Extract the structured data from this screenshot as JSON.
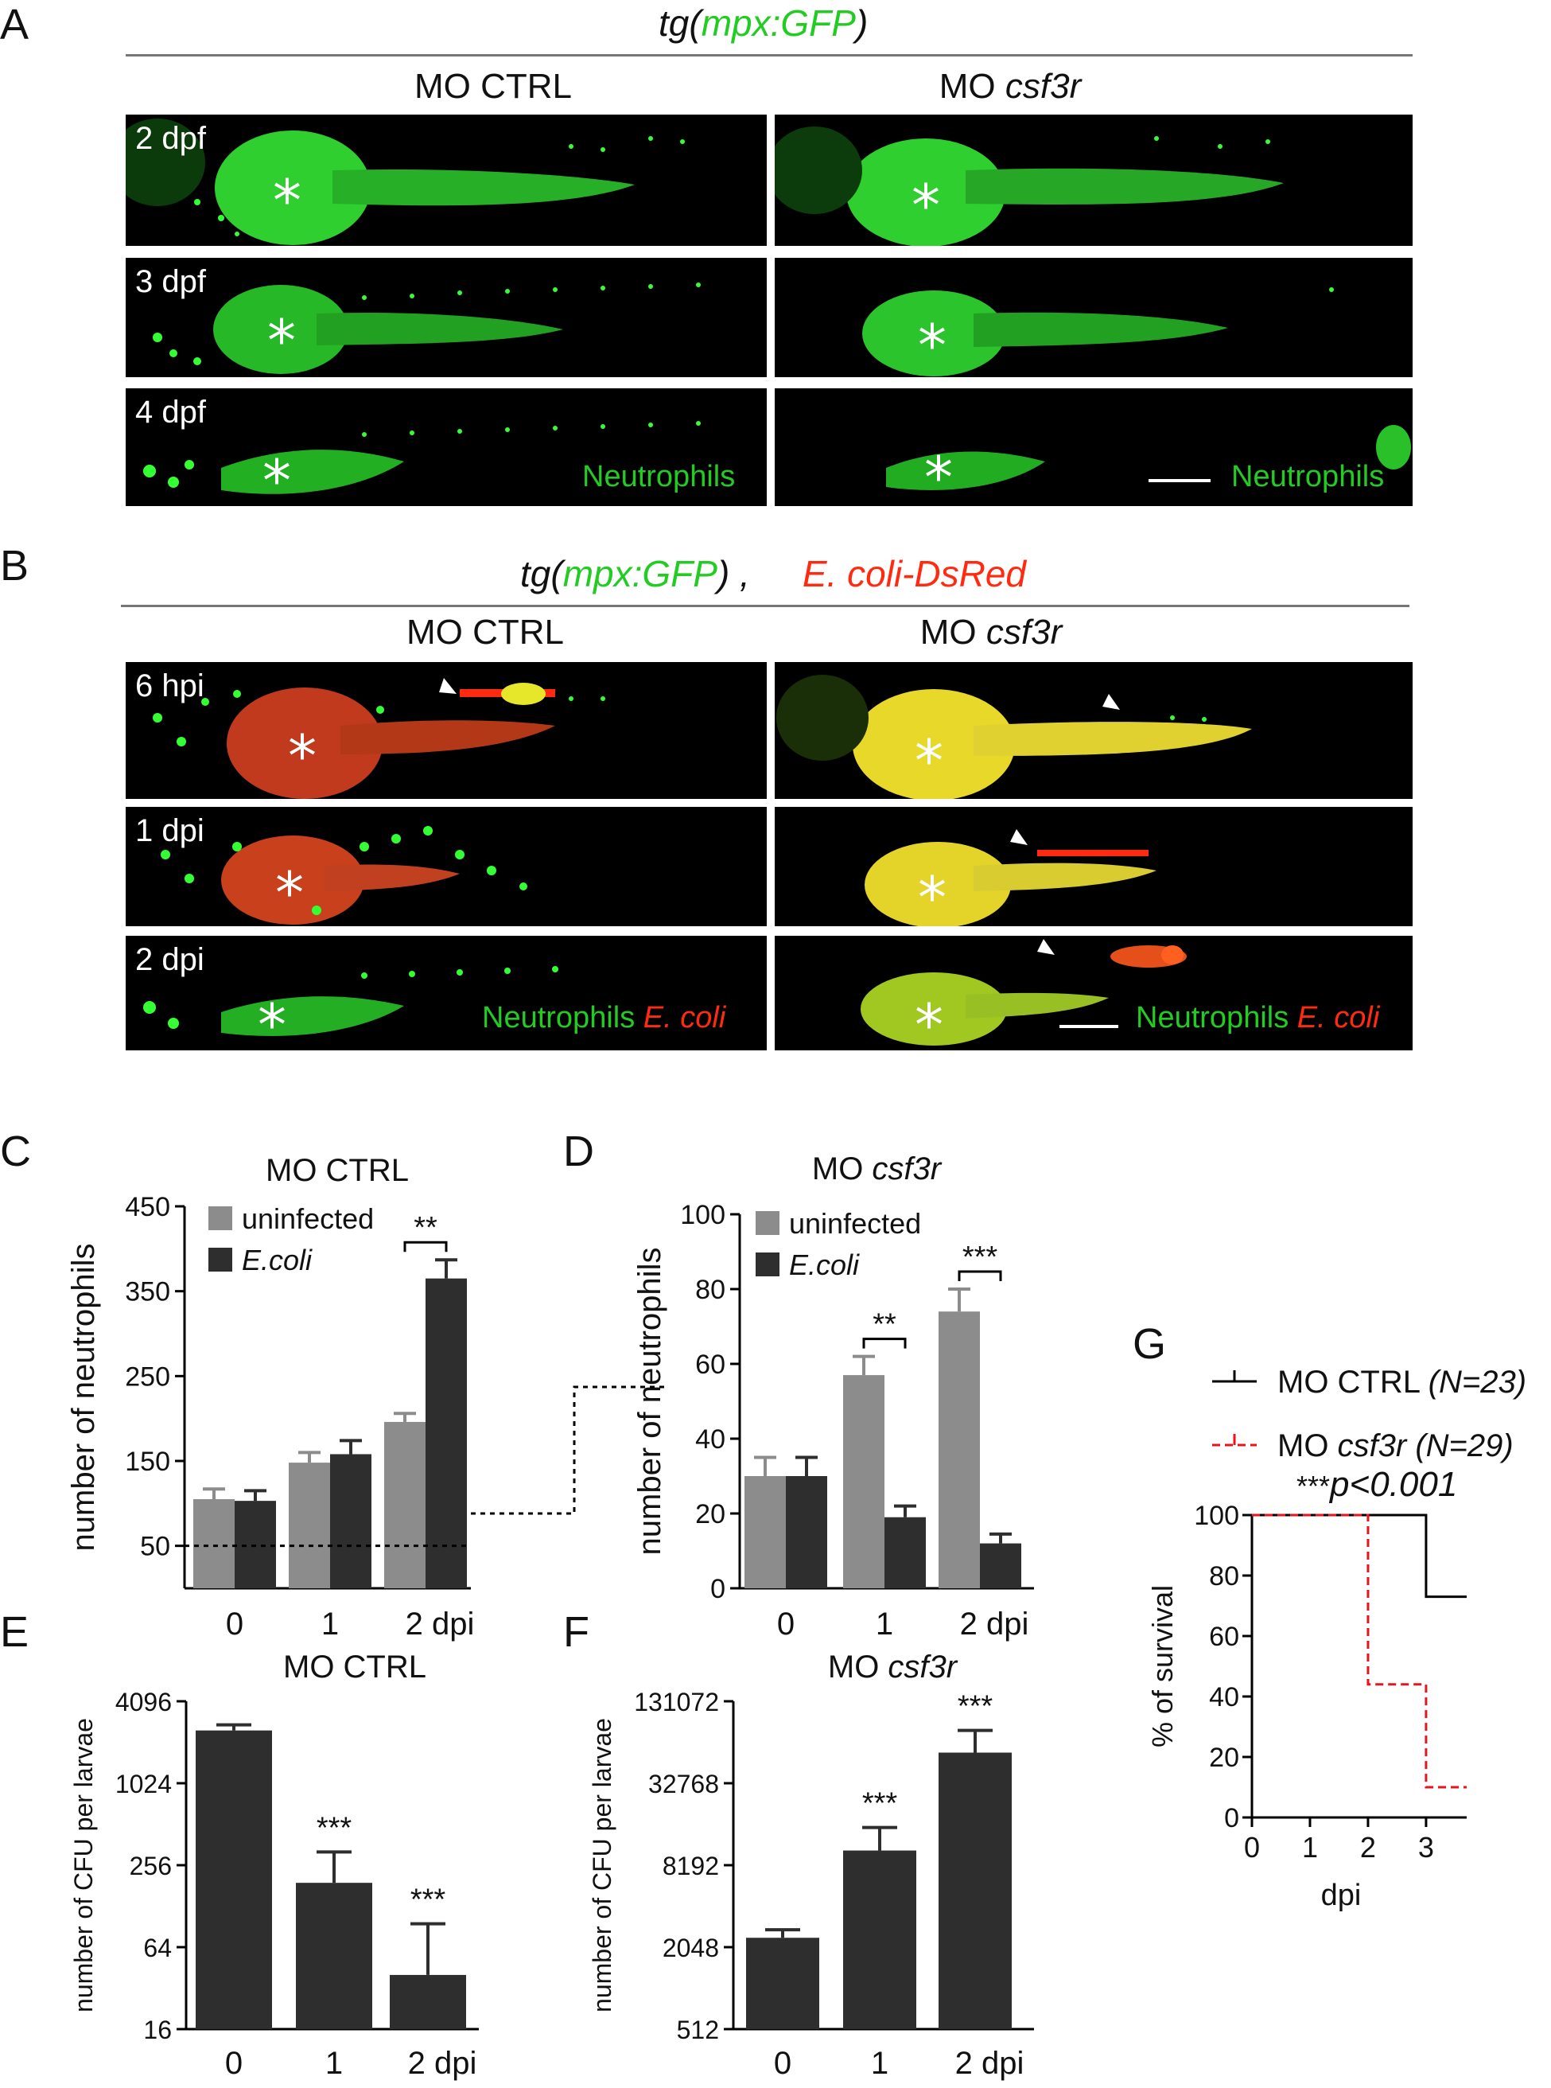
{
  "panel_A": {
    "label": "A",
    "title_pre": "tg(",
    "title_green": "mpx:GFP",
    "title_post": ")",
    "col_left": "MO CTRL",
    "col_right_pre": "MO ",
    "col_right_ital": "csf3r",
    "rows": [
      "2 dpf",
      "3 dpf",
      "4 dpf"
    ],
    "asterisk": "*",
    "legend": "Neutrophils"
  },
  "panel_B": {
    "label": "B",
    "title_pre": "tg(",
    "title_green": "mpx:GFP",
    "title_post": ") ,",
    "title_red": "E. coli-DsRed",
    "col_left": "MO CTRL",
    "col_right_pre": "MO ",
    "col_right_ital": "csf3r",
    "rows": [
      "6 hpi",
      "1 dpi",
      "2 dpi"
    ],
    "asterisk": "*",
    "legend_green": "Neutrophils",
    "legend_red": "E. coli"
  },
  "colors": {
    "gfp_green": "#22cc22",
    "dsred": "#ff2a10",
    "bar_light": "#8c8c8c",
    "bar_dark": "#2e2e2e",
    "survival_ctrl": "#000000",
    "survival_csf3r": "#e8141b"
  },
  "chart_data": [
    {
      "panel": "C",
      "type": "bar",
      "title": "MO CTRL",
      "ylabel": "number of neutrophils",
      "xlabel": "",
      "categories": [
        "0",
        "1",
        "2 dpi"
      ],
      "series": [
        {
          "name": "uninfected",
          "values": [
            105,
            148,
            196
          ]
        },
        {
          "name": "E.coli",
          "values": [
            103,
            158,
            365
          ]
        }
      ],
      "errors": [
        [
          12,
          12,
          10
        ],
        [
          12,
          16,
          22
        ]
      ],
      "ylim": [
        0,
        450
      ],
      "yticks": [
        50,
        150,
        250,
        350,
        450
      ],
      "significance": [
        {
          "category": "2 dpi",
          "label": "**"
        }
      ],
      "reference_line": 50,
      "legend_position": "top-left"
    },
    {
      "panel": "D",
      "type": "bar",
      "title_pre": "MO ",
      "title_ital": "csf3r",
      "ylabel": "number of neutrophils",
      "xlabel": "",
      "categories": [
        "0",
        "1",
        "2 dpi"
      ],
      "series": [
        {
          "name": "uninfected",
          "values": [
            30,
            57,
            74
          ]
        },
        {
          "name": "E.coli",
          "values": [
            30,
            19,
            12
          ]
        }
      ],
      "errors": [
        [
          5,
          5,
          6
        ],
        [
          5,
          3,
          2.5
        ]
      ],
      "ylim": [
        0,
        100
      ],
      "yticks": [
        0,
        20,
        40,
        60,
        80,
        100
      ],
      "significance": [
        {
          "category": "1",
          "label": "**"
        },
        {
          "category": "2 dpi",
          "label": "***"
        }
      ],
      "reference_line": 50,
      "legend_position": "top-left"
    },
    {
      "panel": "E",
      "type": "bar",
      "title": "MO CTRL",
      "ylabel": "number of CFU per larvae",
      "xlabel": "",
      "scale": "log2",
      "categories": [
        "0",
        "1",
        "2 dpi"
      ],
      "values": [
        2500,
        190,
        40
      ],
      "errors_upper": [
        2750,
        320,
        95
      ],
      "ylim": [
        16,
        4096
      ],
      "yticks": [
        16,
        64,
        256,
        1024,
        4096
      ],
      "significance_labels": [
        "",
        "***",
        "***"
      ]
    },
    {
      "panel": "F",
      "type": "bar",
      "title_pre": "MO ",
      "title_ital": "csf3r",
      "ylabel": "number of CFU per larvae",
      "xlabel": "",
      "scale": "log2",
      "categories": [
        "0",
        "1",
        "2 dpi"
      ],
      "values": [
        2400,
        10500,
        55000
      ],
      "errors_upper": [
        2750,
        15500,
        80000
      ],
      "ylim": [
        512,
        131072
      ],
      "yticks": [
        512,
        2048,
        8192,
        32768,
        131072
      ],
      "significance_labels": [
        "",
        "***",
        "***"
      ]
    },
    {
      "panel": "G",
      "type": "line",
      "subtype": "survival",
      "ylabel": "% of survival",
      "xlabel": "dpi",
      "xlim": [
        0,
        3.7
      ],
      "ylim": [
        0,
        100
      ],
      "xticks": [
        0,
        1,
        2,
        3
      ],
      "yticks": [
        0,
        20,
        40,
        60,
        80,
        100
      ],
      "annotation_stars": "***",
      "annotation_text": "p<0.001",
      "series": [
        {
          "name_pre": "MO CTRL ",
          "name_ital": "(N=23)",
          "x": [
            0,
            3,
            3,
            3.7
          ],
          "y": [
            100,
            100,
            73,
            73
          ]
        },
        {
          "name_pre": "MO ",
          "name_ital": "csf3r (N=29)",
          "x": [
            0,
            2,
            2,
            3,
            3,
            3.7
          ],
          "y": [
            100,
            100,
            44,
            44,
            10,
            10
          ]
        }
      ],
      "legend_position": "top"
    }
  ]
}
